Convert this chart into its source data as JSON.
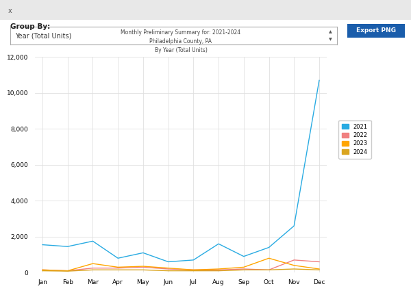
{
  "title_line1": "Monthly Preliminary Summary for: 2021-2024",
  "title_line2": "Philadelphia County, PA",
  "title_line3": "By Year (Total Units)",
  "months": [
    "Jan",
    "Feb",
    "Mar",
    "Apr",
    "May",
    "Jun",
    "Jul",
    "Aug",
    "Sep",
    "Oct",
    "Nov",
    "Dec"
  ],
  "series": {
    "2021": [
      1550,
      1450,
      1750,
      800,
      1100,
      600,
      700,
      1600,
      900,
      1400,
      2600,
      10700
    ],
    "2022": [
      150,
      100,
      250,
      250,
      300,
      200,
      150,
      150,
      200,
      150,
      700,
      600
    ],
    "2023": [
      150,
      100,
      500,
      300,
      350,
      250,
      150,
      200,
      300,
      800,
      400,
      200
    ],
    "2024": [
      100,
      80,
      150,
      150,
      150,
      100,
      100,
      100,
      150,
      150,
      200,
      150
    ]
  },
  "colors": {
    "2021": "#29ABE2",
    "2022": "#F08080",
    "2023": "#FFA500",
    "2024": "#DAA520"
  },
  "ylim": [
    0,
    12000
  ],
  "yticks": [
    0,
    2000,
    4000,
    6000,
    8000,
    10000,
    12000
  ],
  "background_color": "#ffffff",
  "top_bar_color": "#e8e8e8",
  "plot_bg_color": "#ffffff",
  "grid_color": "#e0e0e0",
  "ui": {
    "group_by_label": "Group By:",
    "dropdown_text": "Year (Total Units)",
    "export_button": "Export PNG",
    "close_x": "x"
  }
}
